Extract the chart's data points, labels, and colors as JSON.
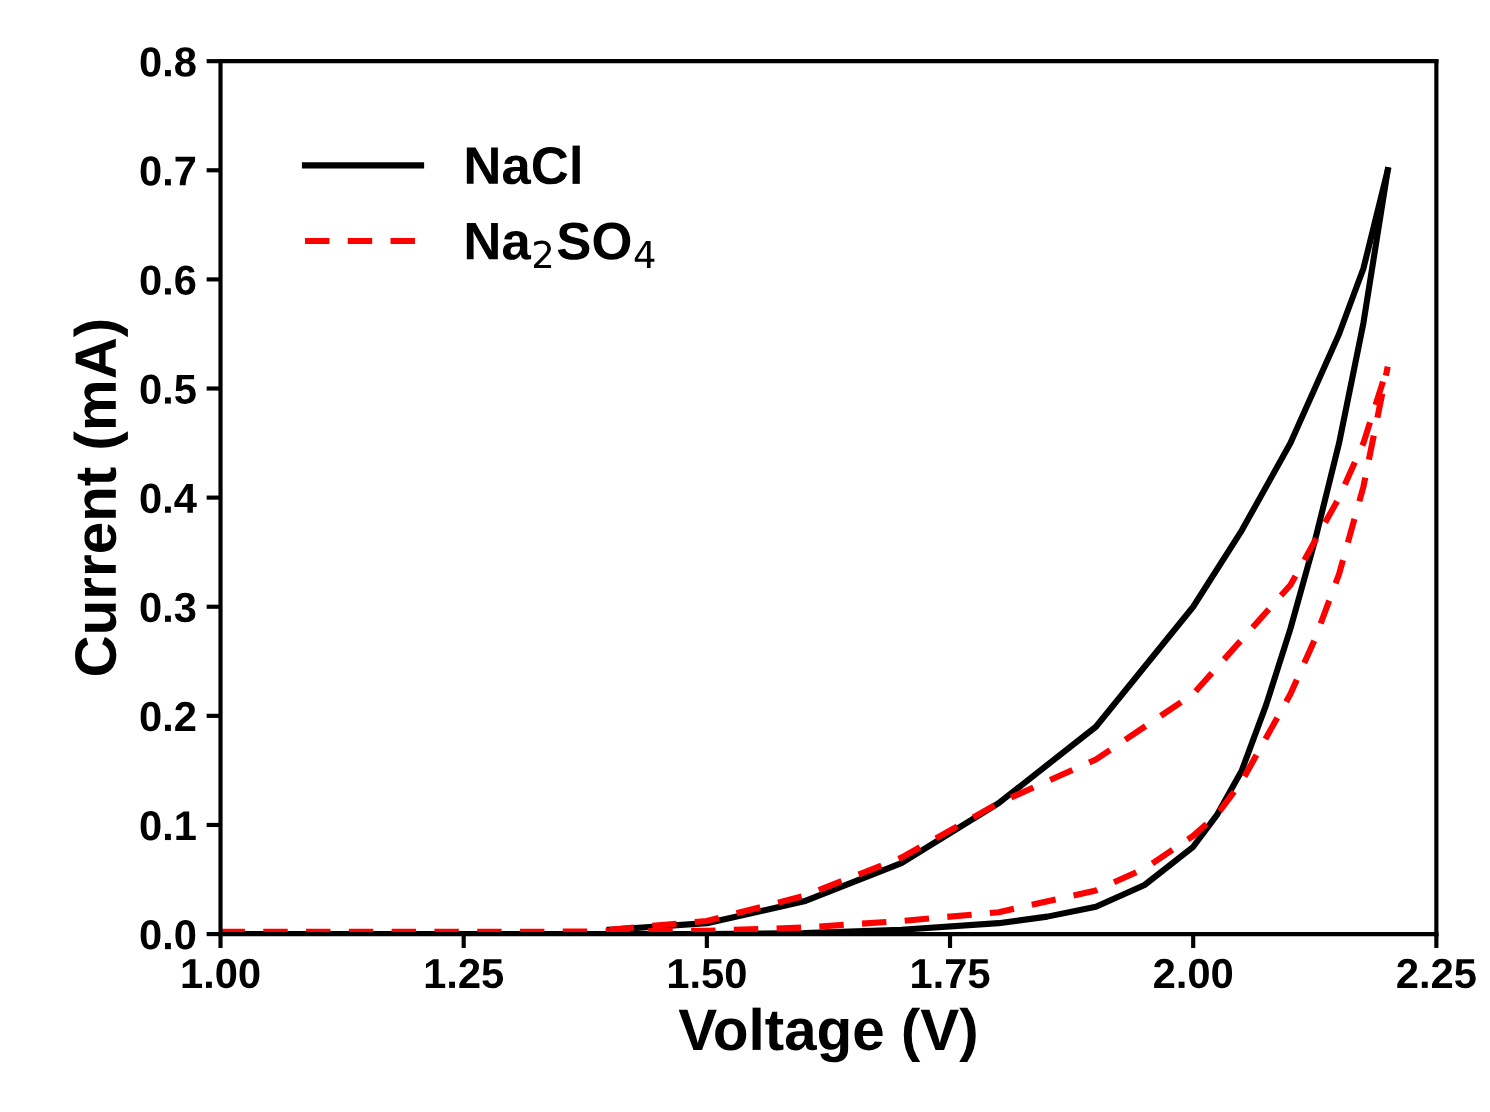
{
  "chart_data": {
    "type": "line",
    "xlabel": "Voltage (V)",
    "ylabel": "Current (mA)",
    "xlim": [
      1.0,
      2.25
    ],
    "ylim": [
      0.0,
      0.8
    ],
    "xticks": [
      {
        "value": 1.0,
        "label": "1.00"
      },
      {
        "value": 1.25,
        "label": "1.25"
      },
      {
        "value": 1.5,
        "label": "1.50"
      },
      {
        "value": 1.75,
        "label": "1.75"
      },
      {
        "value": 2.0,
        "label": "2.00"
      },
      {
        "value": 2.25,
        "label": "2.25"
      }
    ],
    "yticks": [
      {
        "value": 0,
        "label": "0.0"
      },
      {
        "value": 0.1,
        "label": "0.1"
      },
      {
        "value": 0.2,
        "label": "0.2"
      },
      {
        "value": 0.3,
        "label": "0.3"
      },
      {
        "value": 0.4,
        "label": "0.4"
      },
      {
        "value": 0.5,
        "label": "0.5"
      },
      {
        "value": 0.6,
        "label": "0.6"
      },
      {
        "value": 0.7,
        "label": "0.7"
      },
      {
        "value": 0.8,
        "label": "0.8"
      }
    ],
    "legend": "top left",
    "grid": false,
    "marker": "none",
    "series": [
      {
        "name": "NaCl",
        "color": "#000000",
        "line_style": "solid",
        "x": [
          1.0,
          1.3,
          1.5,
          1.6,
          1.7,
          1.8,
          1.85,
          1.9,
          1.95,
          2.0,
          2.025,
          2.05,
          2.075,
          2.1,
          2.125,
          2.15,
          2.175,
          2.2
        ],
        "values": [
          0.0,
          0.0,
          0.0,
          0.001,
          0.004,
          0.01,
          0.016,
          0.025,
          0.045,
          0.08,
          0.11,
          0.15,
          0.21,
          0.28,
          0.36,
          0.45,
          0.56,
          0.7
        ]
      },
      {
        "color": "#000000",
        "line_style": "solid",
        "x": [
          1.4,
          1.5,
          1.6,
          1.7,
          1.8,
          1.9,
          2.0,
          2.05,
          2.1,
          2.15,
          2.175,
          2.2
        ],
        "values": [
          0.004,
          0.01,
          0.03,
          0.065,
          0.12,
          0.19,
          0.3,
          0.37,
          0.45,
          0.55,
          0.61,
          0.7
        ]
      },
      {
        "name": "Na$_{2}$SO$_{4}$",
        "color": "#ff0000",
        "line_style": "dashed",
        "x": [
          1.0,
          1.3,
          1.5,
          1.6,
          1.7,
          1.8,
          1.9,
          1.95,
          2.0,
          2.025,
          2.05,
          2.075,
          2.1,
          2.125,
          2.15,
          2.175,
          2.2
        ],
        "values": [
          0.002,
          0.002,
          0.003,
          0.006,
          0.012,
          0.02,
          0.04,
          0.06,
          0.09,
          0.11,
          0.14,
          0.18,
          0.22,
          0.27,
          0.33,
          0.41,
          0.52
        ]
      },
      {
        "color": "#ff0000",
        "line_style": "dashed",
        "x": [
          1.4,
          1.5,
          1.6,
          1.7,
          1.8,
          1.9,
          2.0,
          2.05,
          2.1,
          2.15,
          2.175,
          2.2
        ],
        "values": [
          0.004,
          0.012,
          0.035,
          0.07,
          0.12,
          0.16,
          0.22,
          0.27,
          0.32,
          0.4,
          0.45,
          0.52
        ]
      }
    ]
  }
}
